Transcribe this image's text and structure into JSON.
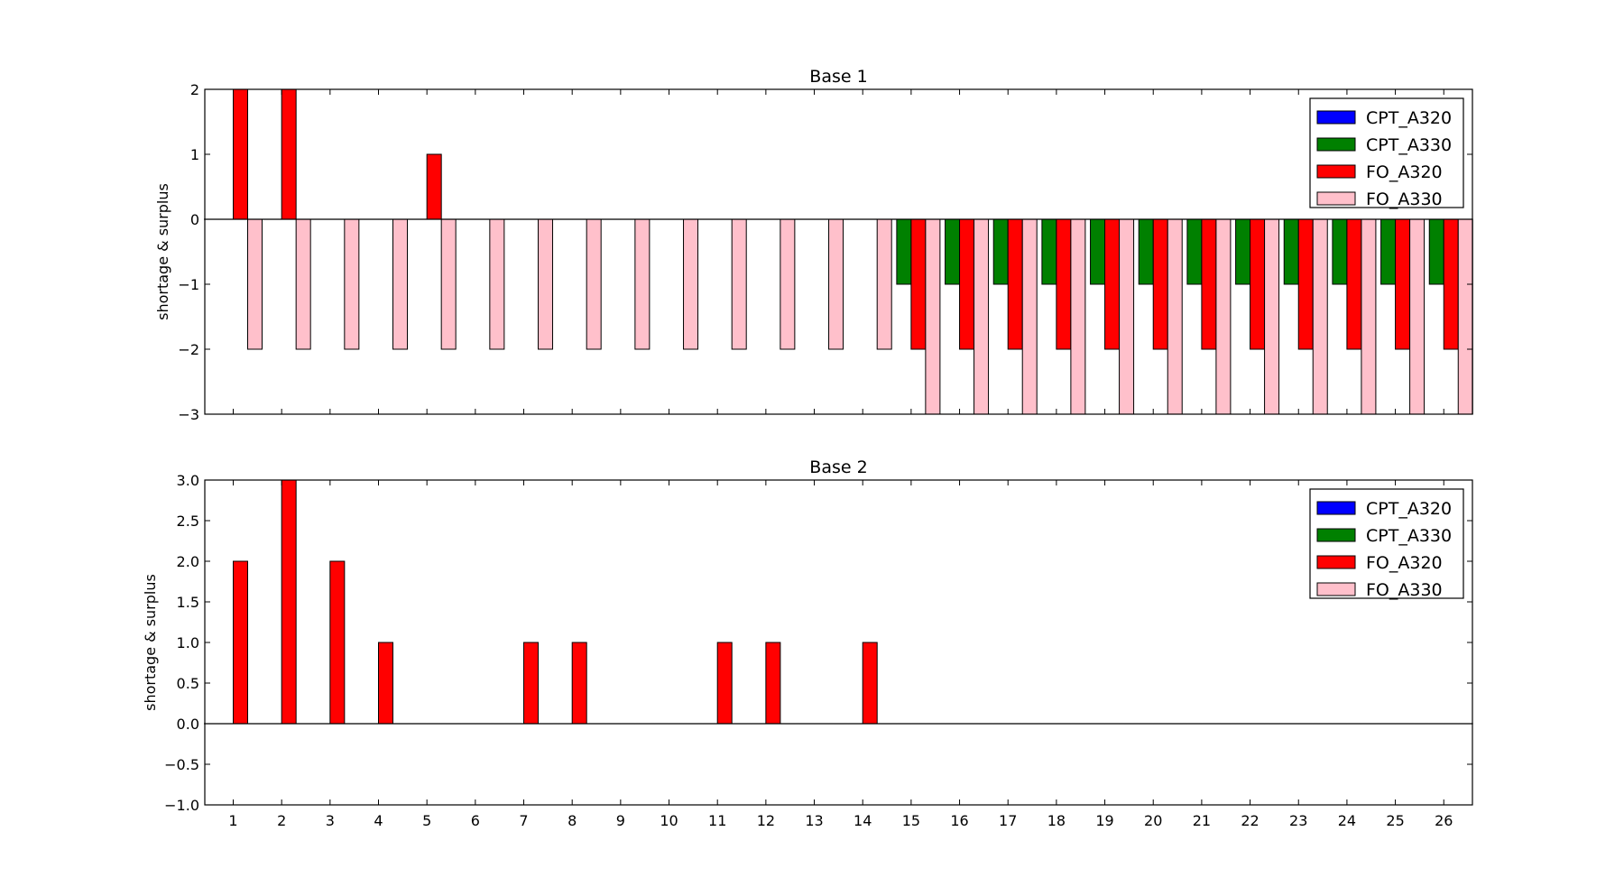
{
  "chart_data": [
    {
      "type": "bar",
      "title": "Base 1",
      "ylabel": "shortage & surplus",
      "xlabel": "",
      "ylim": [
        -3,
        2
      ],
      "yticks": [
        "2",
        "1",
        "0",
        "−1",
        "−2",
        "−3"
      ],
      "ytick_values": [
        2,
        1,
        0,
        -1,
        -2,
        -3
      ],
      "x_tick_labels_shown": false,
      "legend_position": "top-right",
      "categories": [
        "1",
        "2",
        "3",
        "4",
        "5",
        "6",
        "7",
        "8",
        "9",
        "10",
        "11",
        "12",
        "13",
        "14",
        "15",
        "16",
        "17",
        "18",
        "19",
        "20",
        "21",
        "22",
        "23",
        "24",
        "25",
        "26"
      ],
      "series": [
        {
          "name": "CPT_A320",
          "color": "#0000ff",
          "values": [
            0,
            0,
            0,
            0,
            0,
            0,
            0,
            0,
            0,
            0,
            0,
            0,
            0,
            0,
            0,
            0,
            0,
            0,
            0,
            0,
            0,
            0,
            0,
            0,
            0,
            0
          ]
        },
        {
          "name": "CPT_A330",
          "color": "#008000",
          "values": [
            0,
            0,
            0,
            0,
            0,
            0,
            0,
            0,
            0,
            0,
            0,
            0,
            0,
            0,
            -1,
            -1,
            -1,
            -1,
            -1,
            -1,
            -1,
            -1,
            -1,
            -1,
            -1,
            -1
          ]
        },
        {
          "name": "FO_A320",
          "color": "#ff0000",
          "values": [
            2,
            2,
            0,
            0,
            1,
            0,
            0,
            0,
            0,
            0,
            0,
            0,
            0,
            0,
            -2,
            -2,
            -2,
            -2,
            -2,
            -2,
            -2,
            -2,
            -2,
            -2,
            -2,
            -2
          ]
        },
        {
          "name": "FO_A330",
          "color": "#ffc0cb",
          "values": [
            -2,
            -2,
            -2,
            -2,
            -2,
            -2,
            -2,
            -2,
            -2,
            -2,
            -2,
            -2,
            -2,
            -2,
            -3,
            -3,
            -3,
            -3,
            -3,
            -3,
            -3,
            -3,
            -3,
            -3,
            -3,
            -3
          ]
        }
      ]
    },
    {
      "type": "bar",
      "title": "Base 2",
      "ylabel": "shortage & surplus",
      "xlabel": "",
      "ylim": [
        -1,
        3
      ],
      "yticks": [
        "3.0",
        "2.5",
        "2.0",
        "1.5",
        "1.0",
        "0.5",
        "0.0",
        "−0.5",
        "−1.0"
      ],
      "ytick_values": [
        3,
        2.5,
        2,
        1.5,
        1,
        0.5,
        0,
        -0.5,
        -1
      ],
      "x_tick_labels_shown": true,
      "legend_position": "top-right",
      "categories": [
        "1",
        "2",
        "3",
        "4",
        "5",
        "6",
        "7",
        "8",
        "9",
        "10",
        "11",
        "12",
        "13",
        "14",
        "15",
        "16",
        "17",
        "18",
        "19",
        "20",
        "21",
        "22",
        "23",
        "24",
        "25",
        "26"
      ],
      "series": [
        {
          "name": "CPT_A320",
          "color": "#0000ff",
          "values": [
            0,
            0,
            0,
            0,
            0,
            0,
            0,
            0,
            0,
            0,
            0,
            0,
            0,
            0,
            0,
            0,
            0,
            0,
            0,
            0,
            0,
            0,
            0,
            0,
            0,
            0
          ]
        },
        {
          "name": "CPT_A330",
          "color": "#008000",
          "values": [
            0,
            0,
            0,
            0,
            0,
            0,
            0,
            0,
            0,
            0,
            0,
            0,
            0,
            0,
            0,
            0,
            0,
            0,
            0,
            0,
            0,
            0,
            0,
            0,
            0,
            0
          ]
        },
        {
          "name": "FO_A320",
          "color": "#ff0000",
          "values": [
            2,
            3,
            2,
            1,
            0,
            0,
            1,
            1,
            0,
            0,
            1,
            1,
            0,
            1,
            0,
            0,
            0,
            0,
            0,
            0,
            0,
            0,
            0,
            0,
            0,
            0
          ]
        },
        {
          "name": "FO_A330",
          "color": "#ffc0cb",
          "values": [
            0,
            0,
            0,
            0,
            0,
            0,
            0,
            0,
            0,
            0,
            0,
            0,
            0,
            0,
            0,
            0,
            0,
            0,
            0,
            0,
            0,
            0,
            0,
            0,
            0,
            0
          ]
        }
      ]
    }
  ]
}
